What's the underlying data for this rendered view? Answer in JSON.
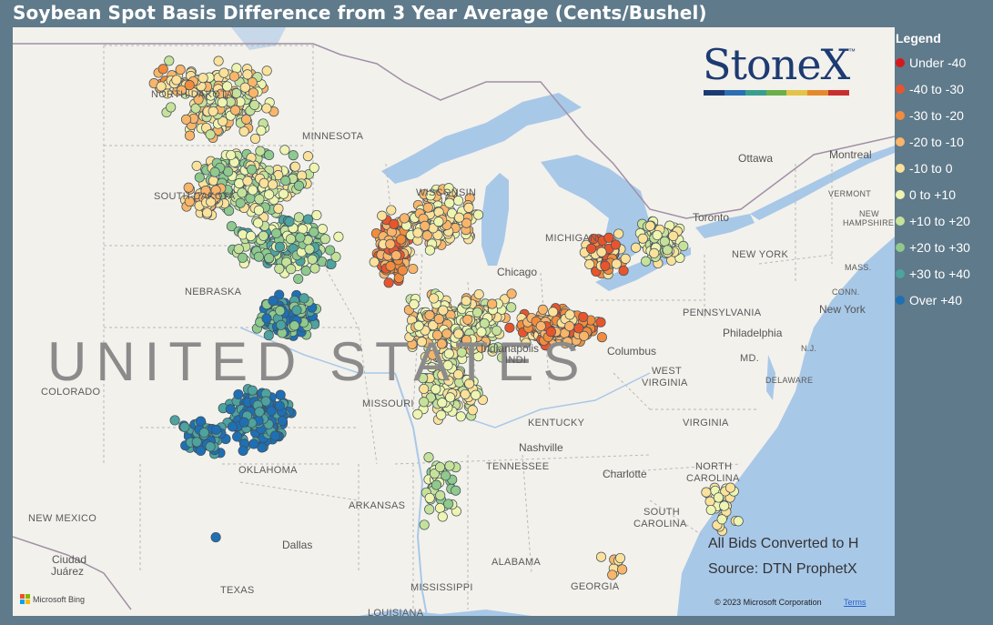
{
  "title": "Soybean Spot Basis Difference from 3 Year Average (Cents/Bushel)",
  "legend": {
    "title": "Legend",
    "items": [
      {
        "label": "Under -40",
        "color": "#d7191c"
      },
      {
        "label": "-40 to -30",
        "color": "#e8552d"
      },
      {
        "label": "-30 to -20",
        "color": "#f28c3c"
      },
      {
        "label": "-20 to -10",
        "color": "#f9b56a"
      },
      {
        "label": "-10 to 0",
        "color": "#fbe19a"
      },
      {
        "label": "0 to +10",
        "color": "#eff5b0"
      },
      {
        "label": "+10 to +20",
        "color": "#c6e29a"
      },
      {
        "label": "+20 to +30",
        "color": "#8fc98d"
      },
      {
        "label": "+30 to +40",
        "color": "#4ea39e"
      },
      {
        "label": "Over +40",
        "color": "#1f6fb4"
      }
    ]
  },
  "logo": {
    "text": "StoneX",
    "tm": "™",
    "bar_colors": [
      "#1d3b73",
      "#2c6fb3",
      "#3a9e8f",
      "#6cae4b",
      "#e3c34a",
      "#e48a2e",
      "#c7302f"
    ]
  },
  "notes": {
    "line1": "All Bids Converted to H",
    "line2": "Source: DTN ProphetX"
  },
  "footer": {
    "bing": "Microsoft Bing",
    "copyright": "© 2023 Microsoft Corporation",
    "terms": "Terms"
  },
  "map_labels": {
    "country": "UNITED STATES",
    "north_dakota": "NORTH DAKOTA",
    "minnesota": "MINNESOTA",
    "south_dakota": "SOUTH DAKOTA",
    "wisconsin": "WISCONSIN",
    "michigan": "MICHIGAN",
    "nebraska": "NEBRASKA",
    "colorado": "COLORADO",
    "missouri": "MISSOURI",
    "kentucky": "KENTUCKY",
    "tennessee": "TENNESSEE",
    "oklahoma": "OKLAHOMA",
    "arkansas": "ARKANSAS",
    "texas": "TEXAS",
    "new_mexico": "NEW MEXICO",
    "mississippi": "MISSISSIPPI",
    "alabama": "ALABAMA",
    "georgia": "GEORGIA",
    "louisiana": "LOUISIANA",
    "west_virginia_1": "WEST",
    "west_virginia_2": "VIRGINIA",
    "virginia": "VIRGINIA",
    "north_carolina_1": "NORTH",
    "north_carolina_2": "CAROLINA",
    "south_carolina_1": "SOUTH",
    "south_carolina_2": "CAROLINA",
    "pennsylvania": "PENNSYLVANIA",
    "new_york_state": "NEW YORK",
    "vermont": "VERMONT",
    "new_hampshire_1": "NEW",
    "new_hampshire_2": "HAMPSHIRE",
    "mass": "MASS.",
    "conn": "CONN.",
    "nj": "N.J.",
    "md": "MD.",
    "delaware": "DELAWARE",
    "indiana": "INDI",
    "illinois_city": "Chicago",
    "ottawa": "Ottawa",
    "montreal": "Montreal",
    "toronto": "Toronto",
    "new_york_city": "New York",
    "philadelphia": "Philadelphia",
    "columbus": "Columbus",
    "nashville": "Nashville",
    "charlotte": "Charlotte",
    "dallas": "Dallas",
    "ciudad_juarez_1": "Ciudad",
    "ciudad_juarez_2": "Juárez",
    "indianapolis": "Indianapolis"
  }
}
